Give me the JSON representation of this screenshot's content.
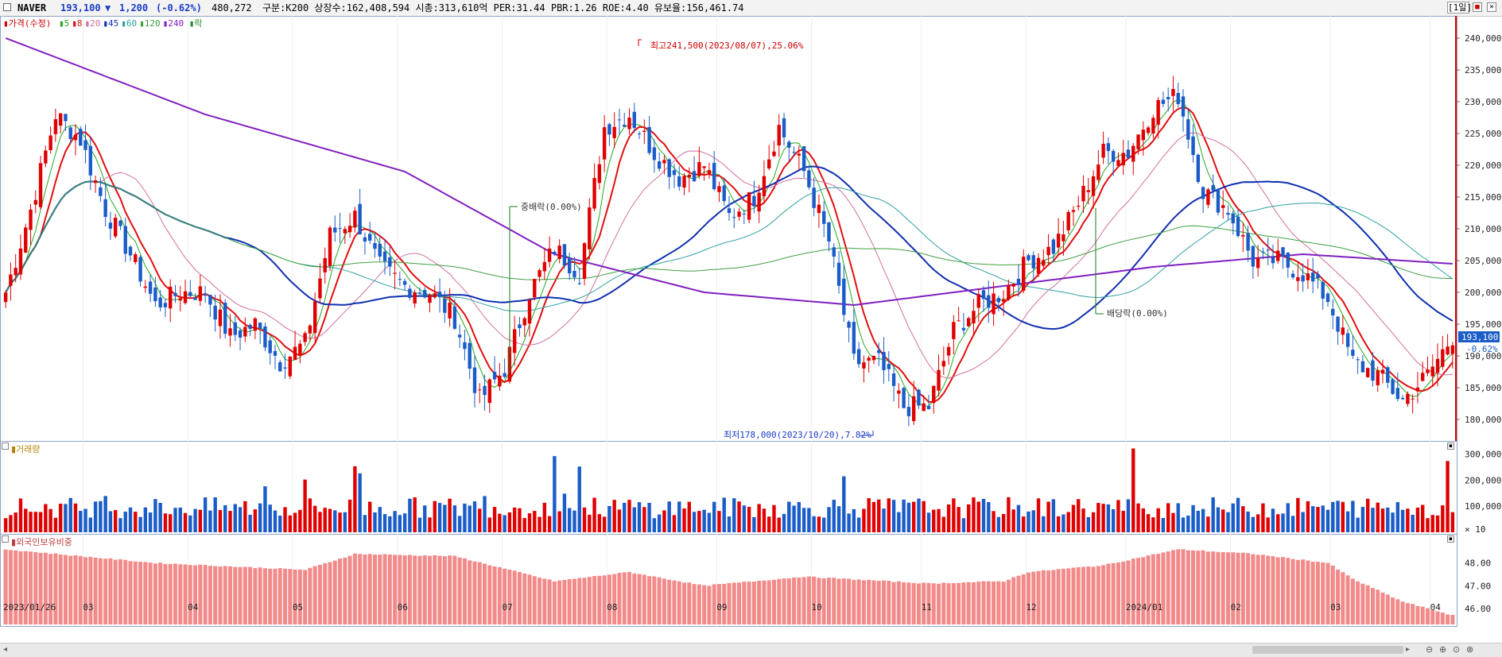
{
  "header": {
    "stock_name": "NAVER",
    "price": "193,100",
    "change_arrow": "▼",
    "change": "1,200",
    "change_pct": "(-0.62%)",
    "volume": "480,272",
    "info": "구분:K200 상장수:162,408,594 시총:313,610억 PER:31.44 PBR:1.26 ROE:4.40 유보율:156,461.74",
    "period": "[1일]"
  },
  "legend": {
    "price_label": "가격(수정)",
    "ma": [
      {
        "label": "5",
        "color": "#22aa22"
      },
      {
        "label": "8",
        "color": "#e01010"
      },
      {
        "label": "20",
        "color": "#d070a0"
      },
      {
        "label": "45",
        "color": "#1030b0"
      },
      {
        "label": "60",
        "color": "#30a0a0"
      },
      {
        "label": "120",
        "color": "#40a040"
      },
      {
        "label": "240",
        "color": "#8020c0"
      }
    ],
    "event_label": "락"
  },
  "volume_panel": {
    "title": "거래량",
    "ticks": [
      "300,000",
      "200,000",
      "100,000",
      "× 10"
    ]
  },
  "foreign_panel": {
    "title": "외국인보유비중",
    "ticks": [
      "48.00",
      "47.00",
      "46.00"
    ]
  },
  "annotations": {
    "high": "최고241,500(2023/08/07),25.06%",
    "low": "최저178,000(2023/10/20),7.82%",
    "div1": "중배락(0.00%)",
    "div2": "배당락(0.00%)"
  },
  "price_tag": {
    "value": "193,100",
    "pct": "-0.62%"
  },
  "x_labels": [
    "2023/01/26",
    "03",
    "04",
    "05",
    "06",
    "07",
    "08",
    "09",
    "10",
    "11",
    "12",
    "2024/01",
    "02",
    "03",
    "04"
  ],
  "colors": {
    "up": "#e00000",
    "down": "#1a5cc8",
    "foreign": "#f28a8a"
  },
  "chart_data": {
    "type": "candlestick",
    "ylim": [
      177000,
      243000
    ],
    "y_ticks": [
      "180,000",
      "185,000",
      "190,000",
      "195,000",
      "200,000",
      "205,000",
      "210,000",
      "215,000",
      "220,000",
      "225,000",
      "230,000",
      "235,000",
      "240,000"
    ],
    "close_path": [
      [
        0,
        200000
      ],
      [
        5,
        213000
      ],
      [
        10,
        228000
      ],
      [
        15,
        224000
      ],
      [
        20,
        213000
      ],
      [
        25,
        206000
      ],
      [
        30,
        198000
      ],
      [
        35,
        200000
      ],
      [
        40,
        200000
      ],
      [
        45,
        193000
      ],
      [
        50,
        195000
      ],
      [
        55,
        189000
      ],
      [
        60,
        192000
      ],
      [
        65,
        209000
      ],
      [
        70,
        212000
      ],
      [
        75,
        204000
      ],
      [
        80,
        201000
      ],
      [
        85,
        200000
      ],
      [
        90,
        196000
      ],
      [
        95,
        183000
      ],
      [
        100,
        188000
      ],
      [
        105,
        200000
      ],
      [
        110,
        207000
      ],
      [
        115,
        203000
      ],
      [
        120,
        226000
      ],
      [
        125,
        228000
      ],
      [
        130,
        222000
      ],
      [
        135,
        218000
      ],
      [
        140,
        220000
      ],
      [
        145,
        212000
      ],
      [
        150,
        215000
      ],
      [
        155,
        226000
      ],
      [
        160,
        219000
      ],
      [
        165,
        208000
      ],
      [
        170,
        189000
      ],
      [
        175,
        189000
      ],
      [
        180,
        182000
      ],
      [
        185,
        182000
      ],
      [
        190,
        194000
      ],
      [
        195,
        198000
      ],
      [
        200,
        200000
      ],
      [
        205,
        205000
      ],
      [
        210,
        207000
      ],
      [
        215,
        214000
      ],
      [
        220,
        222000
      ],
      [
        225,
        222000
      ],
      [
        230,
        229000
      ],
      [
        235,
        231000
      ],
      [
        240,
        216000
      ],
      [
        245,
        213000
      ],
      [
        250,
        205000
      ],
      [
        255,
        205000
      ],
      [
        260,
        203000
      ],
      [
        265,
        199000
      ],
      [
        270,
        189000
      ],
      [
        275,
        187000
      ],
      [
        280,
        183000
      ],
      [
        285,
        187000
      ],
      [
        290,
        193100
      ]
    ],
    "volume_avg": 90000,
    "foreign_ratio": [
      [
        0,
        48.6
      ],
      [
        30,
        48.0
      ],
      [
        60,
        47.7
      ],
      [
        70,
        48.4
      ],
      [
        90,
        48.3
      ],
      [
        110,
        47.2
      ],
      [
        125,
        47.6
      ],
      [
        140,
        47.0
      ],
      [
        160,
        47.4
      ],
      [
        185,
        47.1
      ],
      [
        200,
        47.2
      ],
      [
        205,
        47.6
      ],
      [
        220,
        47.9
      ],
      [
        235,
        48.6
      ],
      [
        250,
        48.4
      ],
      [
        265,
        48.0
      ],
      [
        270,
        47.3
      ],
      [
        280,
        46.3
      ],
      [
        290,
        45.7
      ]
    ]
  }
}
